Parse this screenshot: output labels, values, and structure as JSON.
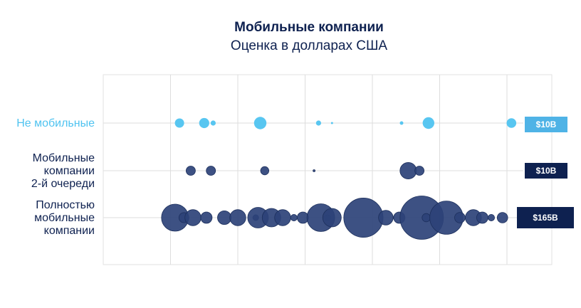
{
  "chart_data": {
    "type": "bubble",
    "title": "Мобильные компании",
    "subtitle": "Оценка в долларах США",
    "colors": {
      "light": "#4fc3f0",
      "dark": "#2c4278",
      "badge_light": "#4fb3e6",
      "badge_dark": "#0e2150",
      "grid": "#dddddd",
      "label_light": "#4fc3f0",
      "label_dark": "#0e2150"
    },
    "x_domain": [
      0,
      100
    ],
    "gridlines": [
      0,
      15,
      30,
      45,
      60,
      75,
      90,
      100
    ],
    "rows": [
      {
        "label_lines": [
          "Не мобильные"
        ],
        "badge": "$10B",
        "color_key": "light",
        "points": [
          {
            "x": 17,
            "v": 1.0
          },
          {
            "x": 22.5,
            "v": 1.2
          },
          {
            "x": 24.5,
            "v": 0.3
          },
          {
            "x": 35,
            "v": 1.8
          },
          {
            "x": 48,
            "v": 0.3
          },
          {
            "x": 51,
            "v": 0.05
          },
          {
            "x": 66.5,
            "v": 0.15
          },
          {
            "x": 72.5,
            "v": 1.6
          },
          {
            "x": 91,
            "v": 1.1
          }
        ]
      },
      {
        "label_lines": [
          "Мобильные",
          "компании",
          "2-й очереди"
        ],
        "badge": "$10B",
        "color_key": "dark",
        "points": [
          {
            "x": 19.5,
            "v": 1.0
          },
          {
            "x": 24,
            "v": 1.0
          },
          {
            "x": 36,
            "v": 0.8
          },
          {
            "x": 47,
            "v": 0.05
          },
          {
            "x": 68,
            "v": 3.2
          },
          {
            "x": 70.5,
            "v": 1.0
          }
        ]
      },
      {
        "label_lines": [
          "Полностью",
          "мобильные",
          "компании"
        ],
        "badge": "$165B",
        "color_key": "dark",
        "points": [
          {
            "x": 16,
            "v": 8.5
          },
          {
            "x": 18,
            "v": 1.2
          },
          {
            "x": 20,
            "v": 3.0
          },
          {
            "x": 23,
            "v": 1.5
          },
          {
            "x": 27,
            "v": 2.2
          },
          {
            "x": 30,
            "v": 3.0
          },
          {
            "x": 34,
            "v": 0.4
          },
          {
            "x": 34.5,
            "v": 5.0
          },
          {
            "x": 37.5,
            "v": 4.0
          },
          {
            "x": 40,
            "v": 3.0
          },
          {
            "x": 42.5,
            "v": 0.5
          },
          {
            "x": 44.5,
            "v": 1.5
          },
          {
            "x": 48.5,
            "v": 9.0
          },
          {
            "x": 50,
            "v": 0.4
          },
          {
            "x": 51,
            "v": 4.0
          },
          {
            "x": 58,
            "v": 18.0
          },
          {
            "x": 63,
            "v": 2.5
          },
          {
            "x": 66,
            "v": 1.5
          },
          {
            "x": 71,
            "v": 22.0
          },
          {
            "x": 72,
            "v": 0.8
          },
          {
            "x": 76.5,
            "v": 13.0
          },
          {
            "x": 79.5,
            "v": 1.3
          },
          {
            "x": 82.5,
            "v": 3.0
          },
          {
            "x": 84.5,
            "v": 1.5
          },
          {
            "x": 86.5,
            "v": 0.5
          },
          {
            "x": 89,
            "v": 1.3
          }
        ]
      }
    ]
  }
}
